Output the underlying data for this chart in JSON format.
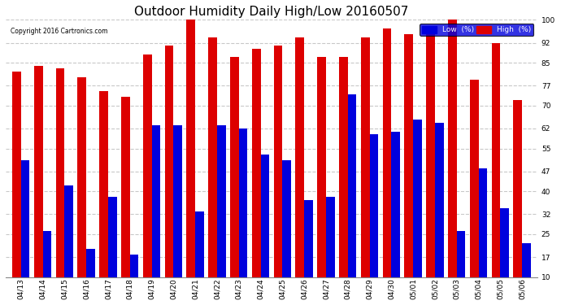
{
  "title": "Outdoor Humidity Daily High/Low 20160507",
  "copyright": "Copyright 2016 Cartronics.com",
  "legend_low": "Low  (%)",
  "legend_high": "High  (%)",
  "low_color": "#0000dd",
  "high_color": "#dd0000",
  "bg_color": "#ffffff",
  "plot_bg_color": "#ffffff",
  "ylim": [
    10,
    100
  ],
  "yticks": [
    10,
    17,
    25,
    32,
    40,
    47,
    55,
    62,
    70,
    77,
    85,
    92,
    100
  ],
  "dates": [
    "04/13",
    "04/14",
    "04/15",
    "04/16",
    "04/17",
    "04/18",
    "04/19",
    "04/20",
    "04/21",
    "04/22",
    "04/23",
    "04/24",
    "04/25",
    "04/26",
    "04/27",
    "04/28",
    "04/29",
    "04/30",
    "05/01",
    "05/02",
    "05/03",
    "05/04",
    "05/05",
    "05/06"
  ],
  "high_values": [
    82,
    84,
    83,
    80,
    75,
    73,
    88,
    91,
    100,
    94,
    87,
    90,
    91,
    94,
    87,
    87,
    94,
    97,
    95,
    97,
    100,
    79,
    92,
    72
  ],
  "low_values": [
    51,
    26,
    42,
    20,
    38,
    18,
    63,
    63,
    33,
    63,
    62,
    53,
    51,
    37,
    38,
    74,
    60,
    61,
    65,
    64,
    26,
    48,
    34,
    22
  ],
  "bar_width": 0.4,
  "grid_color": "#bbbbbb",
  "grid_style": "--",
  "grid_alpha": 0.8,
  "title_fontsize": 11,
  "tick_fontsize": 6.5,
  "label_fontsize": 8
}
